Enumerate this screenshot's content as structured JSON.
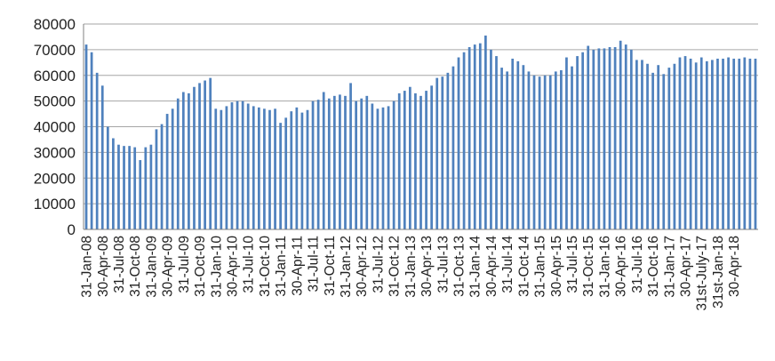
{
  "chart_data": {
    "type": "bar",
    "title": "",
    "xlabel": "",
    "ylabel": "",
    "ylim": [
      0,
      80000
    ],
    "yticks": [
      0,
      10000,
      20000,
      30000,
      40000,
      50000,
      60000,
      70000,
      80000
    ],
    "grid": true,
    "legend": "none",
    "bar_color": "#4f81bd",
    "grid_color": "#a6a6a6",
    "axis_color": "#808080",
    "x_tick_labels": [
      "31-Jan-08",
      "30-Apr-08",
      "31-Jul-08",
      "31-Oct-08",
      "31-Jan-09",
      "30-Apr-09",
      "31-Jul-09",
      "31-Oct-09",
      "31-Jan-10",
      "30-Apr-10",
      "31-Jul-10",
      "31-Oct-10",
      "31-Jan-11",
      "30-Apr-11",
      "31-Jul-11",
      "31-Oct-11",
      "31-Jan-12",
      "30-Apr-12",
      "31-Jul-12",
      "31-Oct-12",
      "31-Jan-13",
      "30-Apr-13",
      "31-Jul-13",
      "31-Oct-13",
      "31-Jan-14",
      "30-Apr-14",
      "31-Jul-14",
      "31-Oct-14",
      "31-Jan-15",
      "30-Apr-15",
      "31-Jul-15",
      "31-Oct-15",
      "31-Jan-16",
      "30-Apr-16",
      "31-Jul-16",
      "31-Oct-16",
      "31-Jan-17",
      "30-Apr-17",
      "31st-July-17",
      "31st-Jan-18",
      "30-Apr-18"
    ],
    "series": [
      {
        "values": [
          72000,
          69000,
          61000,
          56000,
          40000,
          35500,
          33000,
          32500,
          32500,
          32000,
          27000,
          32000,
          33000,
          39000,
          41000,
          45000,
          47000,
          51000,
          53500,
          53000,
          55500,
          57000,
          58000,
          59000,
          47000,
          46500,
          48000,
          49500,
          50000,
          50000,
          49000,
          48000,
          47500,
          47000,
          46500,
          47000,
          41500,
          43500,
          46000,
          47500,
          45500,
          46500,
          50000,
          50500,
          53500,
          51000,
          52000,
          52500,
          52000,
          57000,
          50000,
          51000,
          52000,
          49000,
          47000,
          47500,
          48000,
          50000,
          53000,
          54000,
          55500,
          53000,
          52000,
          54000,
          56000,
          59000,
          59500,
          61000,
          63500,
          67000,
          69000,
          71000,
          72000,
          72500,
          75500,
          70000,
          67500,
          63000,
          61500,
          66500,
          65500,
          64000,
          61500,
          60000,
          59500,
          60000,
          60000,
          61500,
          62000,
          67000,
          63500,
          67500,
          69000,
          71500,
          70000,
          70500,
          70500,
          71000,
          71000,
          73500,
          72000,
          70000,
          66000,
          66000,
          64500,
          61000,
          64000,
          60500,
          63000,
          64500,
          67000,
          67500,
          66500,
          65000,
          67000,
          65500,
          66000,
          66500,
          66500,
          67000,
          66500,
          66500,
          67000,
          66500,
          66500
        ]
      }
    ]
  }
}
